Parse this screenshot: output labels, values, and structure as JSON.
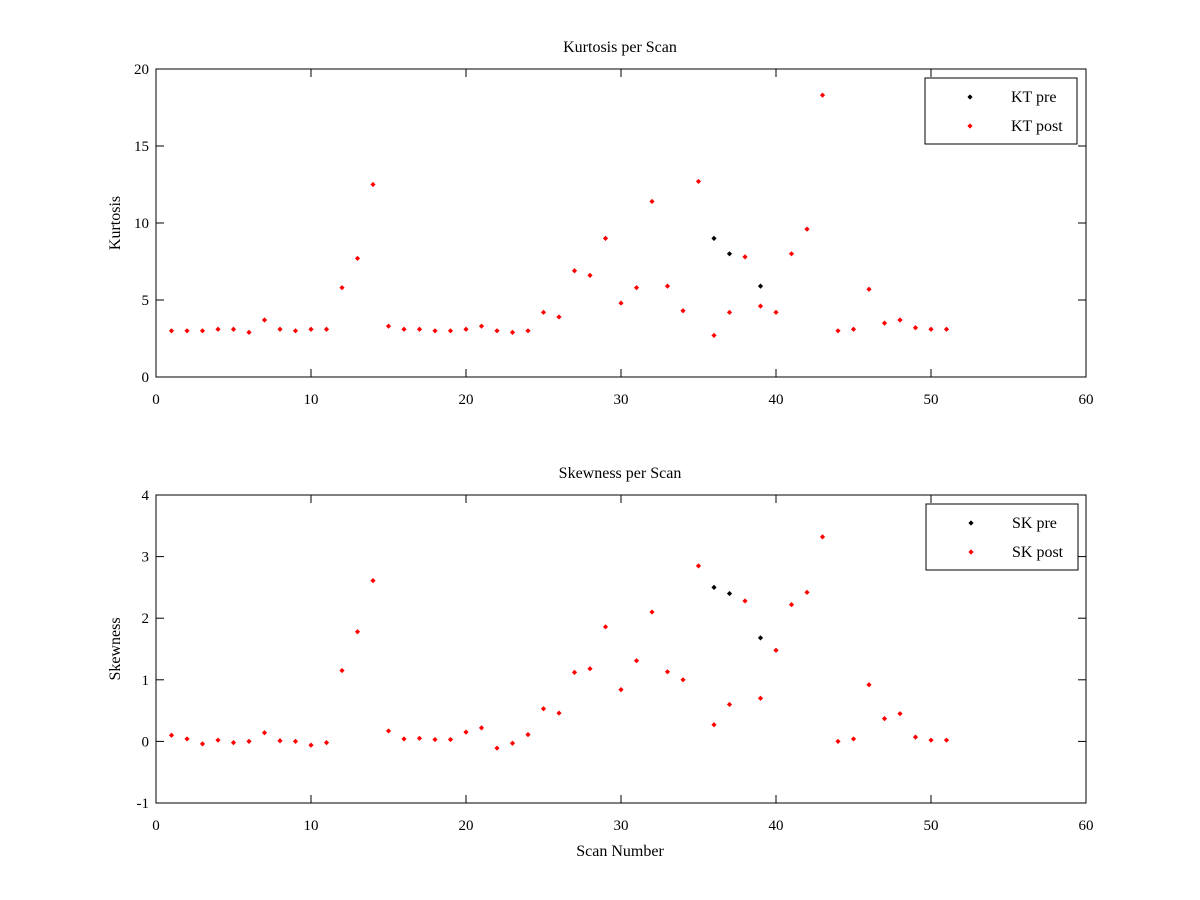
{
  "chart_data": [
    {
      "type": "scatter",
      "title": "Kurtosis per Scan",
      "xlabel": "",
      "ylabel": "Kurtosis",
      "xlim": [
        0,
        60
      ],
      "ylim": [
        0,
        20
      ],
      "xticks": [
        "0",
        "10",
        "20",
        "30",
        "40",
        "50",
        "60"
      ],
      "yticks": [
        "0",
        "5",
        "10",
        "15",
        "20"
      ],
      "legend": "top-right",
      "series": [
        {
          "name": "KT pre",
          "color": "#000000",
          "points": [
            [
              36,
              9.0
            ],
            [
              37,
              8.0
            ],
            [
              39,
              5.9
            ]
          ]
        },
        {
          "name": "KT post",
          "color": "#ff0000",
          "points": [
            [
              1,
              3.0
            ],
            [
              2,
              3.0
            ],
            [
              3,
              3.0
            ],
            [
              4,
              3.1
            ],
            [
              5,
              3.1
            ],
            [
              6,
              2.9
            ],
            [
              7,
              3.7
            ],
            [
              8,
              3.1
            ],
            [
              9,
              3.0
            ],
            [
              10,
              3.1
            ],
            [
              11,
              3.1
            ],
            [
              12,
              5.8
            ],
            [
              13,
              7.7
            ],
            [
              14,
              12.5
            ],
            [
              15,
              3.3
            ],
            [
              16,
              3.1
            ],
            [
              17,
              3.1
            ],
            [
              18,
              3.0
            ],
            [
              19,
              3.0
            ],
            [
              20,
              3.1
            ],
            [
              21,
              3.3
            ],
            [
              22,
              3.0
            ],
            [
              23,
              2.9
            ],
            [
              24,
              3.0
            ],
            [
              25,
              4.2
            ],
            [
              26,
              3.9
            ],
            [
              27,
              6.9
            ],
            [
              28,
              6.6
            ],
            [
              29,
              9.0
            ],
            [
              30,
              4.8
            ],
            [
              31,
              5.8
            ],
            [
              32,
              11.4
            ],
            [
              33,
              5.9
            ],
            [
              34,
              4.3
            ],
            [
              35,
              12.7
            ],
            [
              36,
              2.7
            ],
            [
              37,
              4.2
            ],
            [
              38,
              7.8
            ],
            [
              39,
              4.6
            ],
            [
              40,
              4.2
            ],
            [
              41,
              8.0
            ],
            [
              42,
              9.6
            ],
            [
              43,
              18.3
            ],
            [
              44,
              3.0
            ],
            [
              45,
              3.1
            ],
            [
              46,
              5.7
            ],
            [
              47,
              3.5
            ],
            [
              48,
              3.7
            ],
            [
              49,
              3.2
            ],
            [
              50,
              3.1
            ],
            [
              51,
              3.1
            ]
          ]
        }
      ]
    },
    {
      "type": "scatter",
      "title": "Skewness per Scan",
      "xlabel": "Scan Number",
      "ylabel": "Skewness",
      "xlim": [
        0,
        60
      ],
      "ylim": [
        -1,
        4
      ],
      "xticks": [
        "0",
        "10",
        "20",
        "30",
        "40",
        "50",
        "60"
      ],
      "yticks": [
        "-1",
        "0",
        "1",
        "2",
        "3",
        "4"
      ],
      "legend": "top-right",
      "series": [
        {
          "name": "SK pre",
          "color": "#000000",
          "points": [
            [
              36,
              2.5
            ],
            [
              37,
              2.4
            ],
            [
              39,
              1.68
            ]
          ]
        },
        {
          "name": "SK post",
          "color": "#ff0000",
          "points": [
            [
              1,
              0.1
            ],
            [
              2,
              0.04
            ],
            [
              3,
              -0.04
            ],
            [
              4,
              0.02
            ],
            [
              5,
              -0.02
            ],
            [
              6,
              0.0
            ],
            [
              7,
              0.14
            ],
            [
              8,
              0.01
            ],
            [
              9,
              0.0
            ],
            [
              10,
              -0.06
            ],
            [
              11,
              -0.02
            ],
            [
              12,
              1.15
            ],
            [
              13,
              1.78
            ],
            [
              14,
              2.61
            ],
            [
              15,
              0.17
            ],
            [
              16,
              0.04
            ],
            [
              17,
              0.05
            ],
            [
              18,
              0.03
            ],
            [
              19,
              0.03
            ],
            [
              20,
              0.15
            ],
            [
              21,
              0.22
            ],
            [
              22,
              -0.11
            ],
            [
              23,
              -0.03
            ],
            [
              24,
              0.11
            ],
            [
              25,
              0.53
            ],
            [
              26,
              0.46
            ],
            [
              27,
              1.12
            ],
            [
              28,
              1.18
            ],
            [
              29,
              1.86
            ],
            [
              30,
              0.84
            ],
            [
              31,
              1.31
            ],
            [
              32,
              2.1
            ],
            [
              33,
              1.13
            ],
            [
              34,
              1.0
            ],
            [
              35,
              2.85
            ],
            [
              36,
              0.27
            ],
            [
              37,
              0.6
            ],
            [
              38,
              2.28
            ],
            [
              39,
              0.7
            ],
            [
              40,
              1.48
            ],
            [
              41,
              2.22
            ],
            [
              42,
              2.42
            ],
            [
              43,
              3.32
            ],
            [
              44,
              0.0
            ],
            [
              45,
              0.04
            ],
            [
              46,
              0.92
            ],
            [
              47,
              0.37
            ],
            [
              48,
              0.45
            ],
            [
              49,
              0.07
            ],
            [
              50,
              0.02
            ],
            [
              51,
              0.02
            ]
          ]
        }
      ]
    }
  ]
}
